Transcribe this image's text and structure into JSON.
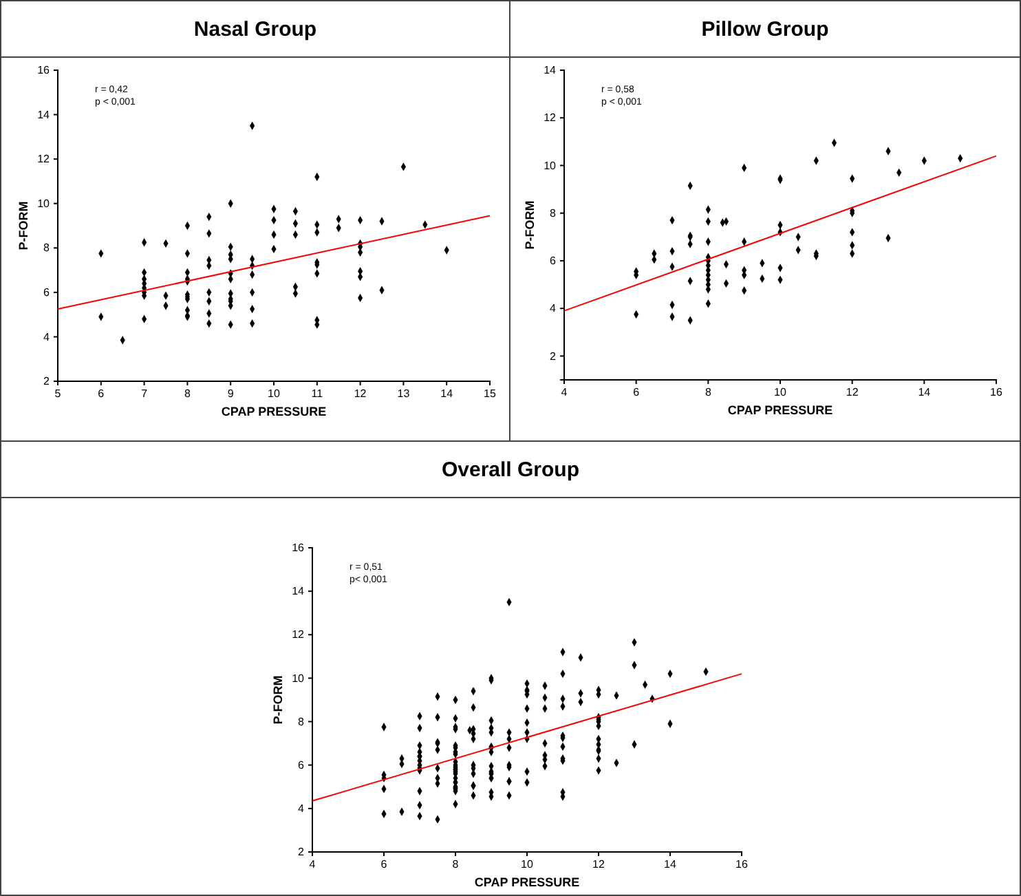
{
  "chart_data": [
    {
      "type": "scatter",
      "title": "Nasal Group",
      "xlabel": "CPAP PRESSURE",
      "ylabel": "P-FORM",
      "xlim": [
        5,
        15
      ],
      "ylim": [
        2,
        16
      ],
      "xticks": [
        5,
        6,
        7,
        8,
        9,
        10,
        11,
        12,
        13,
        14,
        15
      ],
      "yticks": [
        2,
        4,
        6,
        8,
        10,
        12,
        14,
        16
      ],
      "annotations": [
        "r = 0,42",
        "p < 0,001"
      ],
      "series": [
        {
          "marker": "diamond",
          "color": "#000000",
          "x": [
            6,
            6,
            6.5,
            7,
            7,
            7,
            7,
            7,
            7,
            7,
            7,
            7.5,
            7.5,
            7.5,
            8,
            8,
            8,
            8,
            8,
            8,
            8,
            8,
            8,
            8,
            8,
            8.5,
            8.5,
            8.5,
            8.5,
            8.5,
            8.5,
            8.5,
            8.5,
            9,
            9,
            9,
            9,
            9,
            9,
            9,
            9,
            9,
            9,
            9,
            9.5,
            9.5,
            9.5,
            9.5,
            9.5,
            9.5,
            9.5,
            10,
            10,
            10,
            10,
            10.5,
            10.5,
            10.5,
            10.5,
            10.5,
            11,
            11,
            11,
            11,
            11,
            11,
            11,
            11,
            11.5,
            11.5,
            12,
            12,
            12,
            12,
            12,
            12,
            12,
            12.5,
            12.5,
            13,
            13.5,
            14
          ],
          "values": [
            7.75,
            4.9,
            3.85,
            8.25,
            6.9,
            6.6,
            6.4,
            6.2,
            6.0,
            5.85,
            4.8,
            8.2,
            5.85,
            5.4,
            9.0,
            7.75,
            6.9,
            6.6,
            6.5,
            5.9,
            5.8,
            5.7,
            5.2,
            4.95,
            4.9,
            9.4,
            8.65,
            7.45,
            7.2,
            6.0,
            5.6,
            5.05,
            4.6,
            10.0,
            8.05,
            7.7,
            7.5,
            6.85,
            6.6,
            5.95,
            5.7,
            5.6,
            5.4,
            4.55,
            13.5,
            7.5,
            7.2,
            6.8,
            6.0,
            5.25,
            4.6,
            9.75,
            9.25,
            8.6,
            7.95,
            9.65,
            9.1,
            8.6,
            6.25,
            5.95,
            11.2,
            9.05,
            8.7,
            7.35,
            7.25,
            6.85,
            4.75,
            4.55,
            9.3,
            8.9,
            9.25,
            8.2,
            8.05,
            7.8,
            6.95,
            6.7,
            5.75,
            9.2,
            6.1,
            11.65,
            9.05,
            7.9
          ]
        },
        {
          "type": "line",
          "color": "#ff0000",
          "x": [
            5,
            15
          ],
          "values": [
            5.25,
            9.45
          ]
        }
      ]
    },
    {
      "type": "scatter",
      "title": "Pillow Group",
      "xlabel": "CPAP PRESSURE",
      "ylabel": "P-FORM",
      "xlim": [
        4,
        16
      ],
      "ylim": [
        1,
        14
      ],
      "xticks": [
        4,
        6,
        8,
        10,
        12,
        14,
        16
      ],
      "yticks": [
        2,
        4,
        6,
        8,
        10,
        12,
        14
      ],
      "annotations": [
        "r = 0,58",
        "p < 0,001"
      ],
      "series": [
        {
          "marker": "diamond",
          "color": "#000000",
          "x": [
            6,
            6,
            6,
            6.5,
            6.5,
            7,
            7,
            7,
            7,
            7,
            7.5,
            7.5,
            7.5,
            7.5,
            7.5,
            7.5,
            8,
            8,
            8,
            8,
            8,
            8,
            8,
            8,
            8,
            8,
            8,
            8,
            8.4,
            8.5,
            8.5,
            8.5,
            9,
            9,
            9,
            9,
            9,
            9.5,
            9.5,
            10,
            10,
            10,
            10,
            10,
            10,
            10.5,
            10.5,
            11,
            11,
            11,
            11.5,
            12,
            12,
            12,
            12,
            12,
            12,
            13,
            13,
            13.3,
            14,
            15
          ],
          "values": [
            5.55,
            5.4,
            3.75,
            6.3,
            6.05,
            7.7,
            6.4,
            5.75,
            4.15,
            3.65,
            9.15,
            7.05,
            7.0,
            6.7,
            5.15,
            3.5,
            8.15,
            7.65,
            6.8,
            6.15,
            6.0,
            5.8,
            5.6,
            5.4,
            5.2,
            5.0,
            4.8,
            4.2,
            7.6,
            7.65,
            5.85,
            5.05,
            9.9,
            6.8,
            5.6,
            5.4,
            4.75,
            5.9,
            5.25,
            9.45,
            9.4,
            7.5,
            7.2,
            5.7,
            5.2,
            7.0,
            6.45,
            10.2,
            6.3,
            6.2,
            10.95,
            9.45,
            8.1,
            8.0,
            7.2,
            6.65,
            6.3,
            10.6,
            6.95,
            9.7,
            10.2,
            10.3
          ]
        },
        {
          "type": "line",
          "color": "#ff0000",
          "x": [
            4,
            16
          ],
          "values": [
            3.9,
            10.4
          ]
        }
      ]
    },
    {
      "type": "scatter",
      "title": "Overall Group",
      "xlabel": "CPAP PRESSURE",
      "ylabel": "P-FORM",
      "xlim": [
        4,
        16
      ],
      "ylim": [
        2,
        16
      ],
      "xticks": [
        4,
        6,
        8,
        10,
        12,
        14,
        16
      ],
      "yticks": [
        2,
        4,
        6,
        8,
        10,
        12,
        14,
        16
      ],
      "annotations": [
        "r = 0,51",
        "p< 0,001"
      ],
      "series": [
        {
          "marker": "diamond",
          "color": "#000000",
          "x": [
            6,
            6,
            6.5,
            7,
            7,
            7,
            7,
            7,
            7,
            7,
            7,
            7.5,
            7.5,
            7.5,
            8,
            8,
            8,
            8,
            8,
            8,
            8,
            8,
            8,
            8,
            8,
            8.5,
            8.5,
            8.5,
            8.5,
            8.5,
            8.5,
            8.5,
            8.5,
            9,
            9,
            9,
            9,
            9,
            9,
            9,
            9,
            9,
            9,
            9,
            9.5,
            9.5,
            9.5,
            9.5,
            9.5,
            9.5,
            9.5,
            10,
            10,
            10,
            10,
            10.5,
            10.5,
            10.5,
            10.5,
            10.5,
            11,
            11,
            11,
            11,
            11,
            11,
            11,
            11,
            11.5,
            11.5,
            12,
            12,
            12,
            12,
            12,
            12,
            12.5,
            12.5,
            13,
            13.5,
            14,
            6,
            6,
            6,
            6.5,
            6.5,
            7,
            7,
            7,
            7,
            7,
            7.5,
            7.5,
            7.5,
            7.5,
            7.5,
            7.5,
            8,
            8,
            8,
            8,
            8,
            8,
            8,
            8,
            8,
            8,
            8,
            8,
            8.4,
            8.5,
            8.5,
            8.5,
            9,
            9,
            9,
            9,
            9,
            9.5,
            9.5,
            10,
            10,
            10,
            10,
            10,
            10,
            10.5,
            10.5,
            11,
            11,
            11,
            11.5,
            12,
            12,
            12,
            12,
            12,
            12,
            13,
            13,
            13.3,
            14,
            15
          ],
          "values": [
            7.75,
            4.9,
            3.85,
            8.25,
            6.9,
            6.6,
            6.4,
            6.2,
            6.0,
            5.85,
            4.8,
            8.2,
            5.85,
            5.4,
            9.0,
            7.75,
            6.9,
            6.6,
            6.5,
            5.9,
            5.8,
            5.7,
            5.2,
            4.95,
            4.9,
            9.4,
            8.65,
            7.45,
            7.2,
            6.0,
            5.6,
            5.05,
            4.6,
            10.0,
            8.05,
            7.7,
            7.5,
            6.85,
            6.6,
            5.95,
            5.7,
            5.6,
            5.4,
            4.55,
            13.5,
            7.5,
            7.2,
            6.8,
            6.0,
            5.25,
            4.6,
            9.75,
            9.25,
            8.6,
            7.95,
            9.65,
            9.1,
            8.6,
            6.25,
            5.95,
            11.2,
            9.05,
            8.7,
            7.35,
            7.25,
            6.85,
            4.75,
            4.55,
            9.3,
            8.9,
            9.25,
            8.2,
            7.8,
            6.95,
            6.7,
            5.75,
            9.2,
            6.1,
            11.65,
            9.05,
            7.9,
            5.55,
            5.4,
            3.75,
            6.3,
            6.05,
            7.7,
            6.4,
            5.75,
            4.15,
            3.65,
            9.15,
            7.05,
            7.0,
            6.7,
            5.15,
            3.5,
            8.15,
            7.65,
            6.8,
            6.15,
            6.0,
            5.8,
            5.6,
            5.4,
            5.2,
            5.0,
            4.8,
            4.2,
            7.6,
            7.65,
            5.85,
            5.05,
            9.9,
            6.8,
            5.6,
            5.4,
            4.75,
            5.9,
            5.25,
            9.45,
            9.4,
            7.5,
            7.2,
            5.7,
            5.2,
            7.0,
            6.45,
            10.2,
            6.3,
            6.2,
            10.95,
            9.45,
            8.1,
            8.0,
            7.2,
            6.65,
            6.3,
            10.6,
            6.95,
            9.7,
            10.2,
            10.3
          ]
        },
        {
          "type": "line",
          "color": "#ff0000",
          "x": [
            4,
            16
          ],
          "values": [
            4.35,
            10.2
          ]
        }
      ]
    }
  ]
}
